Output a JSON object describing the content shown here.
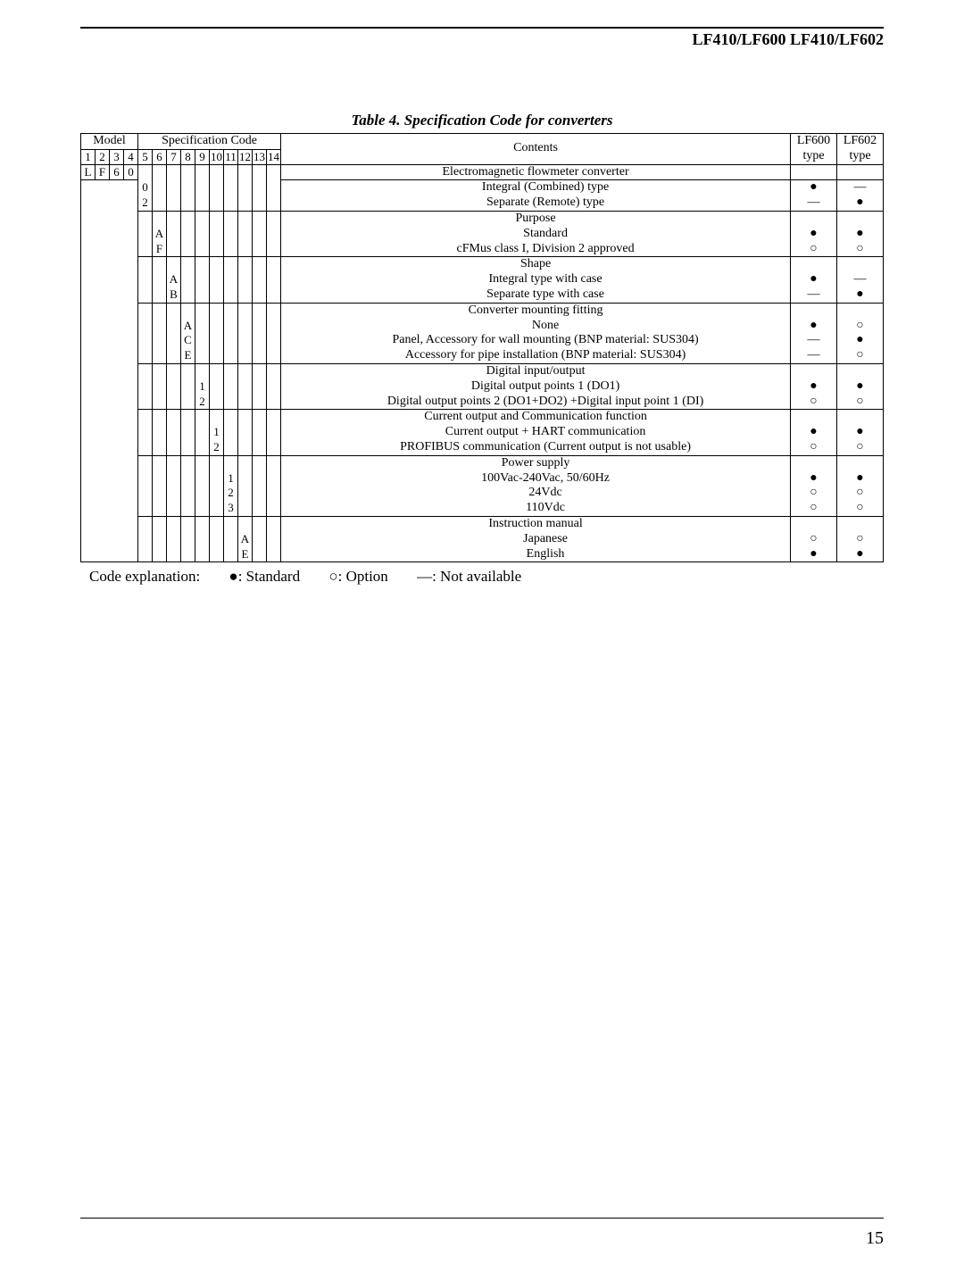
{
  "header": {
    "product_title": "LF410/LF600  LF410/LF602"
  },
  "table": {
    "title": "Table 4.  Specification Code for converters",
    "header_model": "Model",
    "header_spec": "Specification Code",
    "header_contents": "Contents",
    "header_lf600": "LF600 type",
    "header_lf602": "LF602 type",
    "col_nums": [
      "1",
      "2",
      "3",
      "4",
      "5",
      "6",
      "7",
      "8",
      "9",
      "10",
      "11",
      "12",
      "13",
      "14"
    ],
    "model_row": [
      "L",
      "F",
      "6",
      "0"
    ],
    "groups": [
      {
        "col": 5,
        "header_row": {
          "text": "Electromagnetic flowmeter converter",
          "lf600": "",
          "lf602": ""
        },
        "codes": [
          "0",
          "2"
        ],
        "lines": [
          {
            "text": "Integral (Combined) type",
            "lf600": "●",
            "lf602": "—"
          },
          {
            "text": "Separate (Remote) type",
            "lf600": "—",
            "lf602": "●"
          }
        ]
      },
      {
        "col": 6,
        "codes": [
          "",
          "A",
          "F"
        ],
        "lines": [
          {
            "text": "Purpose",
            "lf600": "",
            "lf602": "",
            "is_header": true
          },
          {
            "text": "Standard",
            "lf600": "●",
            "lf602": "●"
          },
          {
            "text": "cFMus class I, Division 2 approved",
            "lf600": "○",
            "lf602": "○"
          }
        ]
      },
      {
        "col": 7,
        "codes": [
          "",
          "A",
          "B"
        ],
        "lines": [
          {
            "text": "Shape",
            "lf600": "",
            "lf602": "",
            "is_header": true
          },
          {
            "text": "Integral type with case",
            "lf600": "●",
            "lf602": "—"
          },
          {
            "text": "Separate type with case",
            "lf600": "—",
            "lf602": "●"
          }
        ]
      },
      {
        "col": 8,
        "codes": [
          "",
          "A",
          "C",
          "E"
        ],
        "lines": [
          {
            "text": "Converter mounting fitting",
            "lf600": "",
            "lf602": "",
            "is_header": true
          },
          {
            "text": "None",
            "lf600": "●",
            "lf602": "○"
          },
          {
            "text": "Panel, Accessory for wall mounting    (BNP material: SUS304)",
            "lf600": "—",
            "lf602": "●"
          },
          {
            "text": "Accessory for pipe installation    (BNP material: SUS304)",
            "lf600": "—",
            "lf602": "○"
          }
        ]
      },
      {
        "col": 9,
        "codes": [
          "",
          "1",
          "2"
        ],
        "lines": [
          {
            "text": "Digital input/output",
            "lf600": "",
            "lf602": "",
            "is_header": true
          },
          {
            "text": "Digital output points 1 (DO1)",
            "lf600": "●",
            "lf602": "●"
          },
          {
            "text": "Digital output points 2 (DO1+DO2) +Digital input point 1 (DI)",
            "lf600": "○",
            "lf602": "○"
          }
        ]
      },
      {
        "col": 10,
        "codes": [
          "",
          "1",
          "2"
        ],
        "lines": [
          {
            "text": "Current output and Communication function",
            "lf600": "",
            "lf602": "",
            "is_header": true
          },
          {
            "text": "Current output + HART communication",
            "lf600": "●",
            "lf602": "●"
          },
          {
            "text": "PROFIBUS communication (Current output is not usable)",
            "lf600": "○",
            "lf602": "○"
          }
        ]
      },
      {
        "col": 11,
        "codes": [
          "",
          "1",
          "2",
          "3"
        ],
        "lines": [
          {
            "text": "Power supply",
            "lf600": "",
            "lf602": "",
            "is_header": true
          },
          {
            "text": "100Vac-240Vac, 50/60Hz",
            "lf600": "●",
            "lf602": "●"
          },
          {
            "text": "24Vdc",
            "lf600": "○",
            "lf602": "○"
          },
          {
            "text": "110Vdc",
            "lf600": "○",
            "lf602": "○"
          }
        ]
      },
      {
        "col": 12,
        "codes": [
          "",
          "A",
          "E"
        ],
        "lines": [
          {
            "text": "Instruction manual",
            "lf600": "",
            "lf602": "",
            "is_header": true
          },
          {
            "text": "Japanese",
            "lf600": "○",
            "lf602": "○"
          },
          {
            "text": "English",
            "lf600": "●",
            "lf602": "●"
          }
        ]
      }
    ]
  },
  "legend": {
    "prefix": "Code explanation:",
    "std": "●: Standard",
    "opt": "○: Option",
    "na": "—: Not available"
  },
  "page_number": "15"
}
